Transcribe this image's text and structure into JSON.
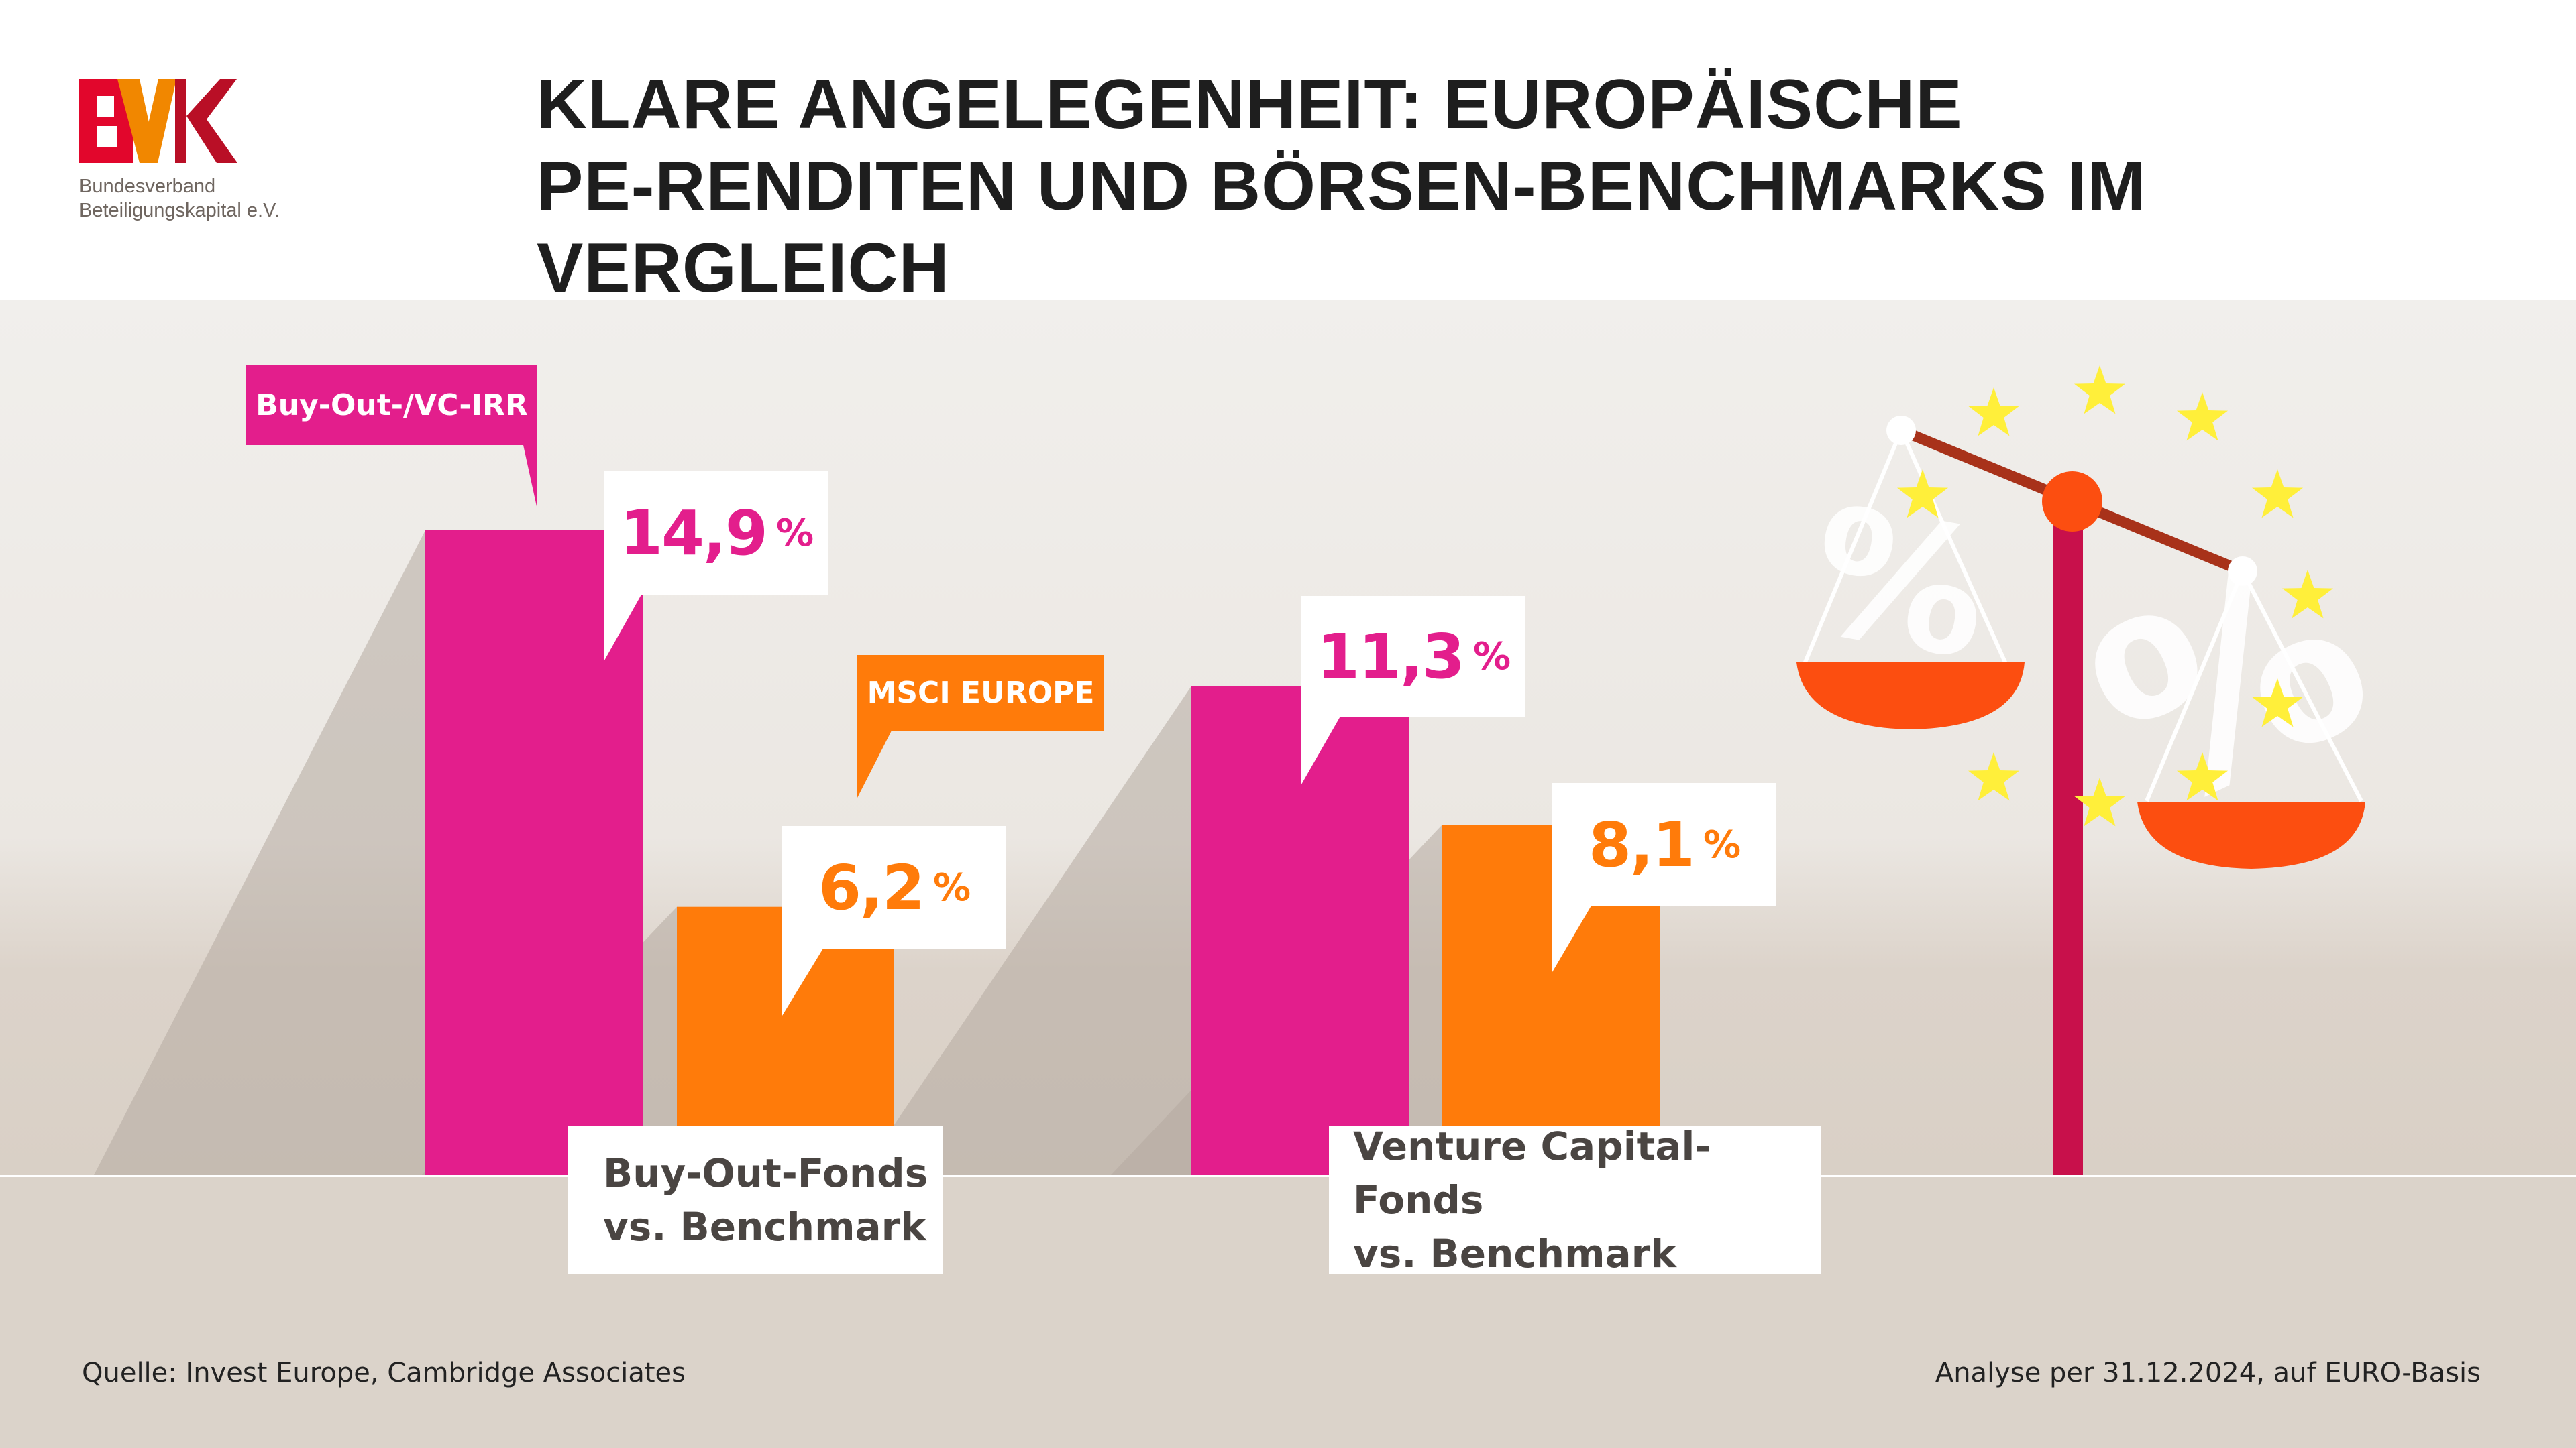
{
  "logo": {
    "text": "BVK",
    "line1": "Bundesverband",
    "line2": "Beteiligungskapital e.V."
  },
  "title": {
    "line1": "KLARE ANGELEGENHEIT: EUROPÄISCHE",
    "line2": "PE-RENDITEN UND BÖRSEN-BENCHMARKS IM VERGLEICH"
  },
  "legend": {
    "pe": "Buy-Out-/VC-IRR",
    "benchmark": "MSCI EUROPE"
  },
  "colors": {
    "pe": "#e31e8c",
    "benchmark": "#ff7b0a",
    "ground": "#dbd3ca"
  },
  "chart_data": {
    "type": "bar",
    "categories": [
      "Buy-Out-Fonds vs. Benchmark",
      "Venture Capital-Fonds vs. Benchmark"
    ],
    "series": [
      {
        "name": "Buy-Out-/VC-IRR",
        "values": [
          14.9,
          11.3
        ]
      },
      {
        "name": "MSCI EUROPE",
        "values": [
          6.2,
          8.1
        ]
      }
    ],
    "data_labels": [
      [
        "14,9",
        "11,3"
      ],
      [
        "6,2",
        "8,1"
      ]
    ],
    "unit": "%",
    "ylim": [
      0,
      15.3
    ]
  },
  "categories_display": [
    {
      "line1": "Buy-Out-Fonds",
      "line2": "vs. Benchmark"
    },
    {
      "line1": "Venture Capital-Fonds",
      "line2": "vs. Benchmark"
    }
  ],
  "footer": {
    "source": "Quelle: Invest Europe, Cambridge Associates",
    "note": "Analyse per 31.12.2024, auf EURO-Basis"
  },
  "illustration": {
    "icon": "scale-with-percent-signs-and-eu-stars",
    "percent": "%"
  }
}
